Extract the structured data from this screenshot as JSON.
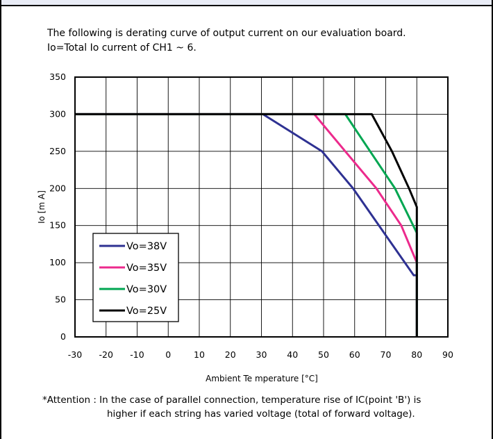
{
  "intro": {
    "line1": "The following is derating curve of output current on our evaluation board.",
    "line2": "Io=Total Io current of CH1 ~ 6."
  },
  "note": {
    "line1": "*Attention : In the case of  parallel connection, temperature rise of IC(point 'B') is",
    "line2": "higher if each string has varied voltage (total of forward voltage)."
  },
  "chart_data": {
    "type": "line",
    "xlabel": "Ambient Te mperature  [°C]",
    "ylabel": "Io [m A]",
    "xlim": [
      -30,
      90
    ],
    "ylim": [
      0,
      350
    ],
    "x_ticks": [
      -30,
      -20,
      -10,
      0,
      10,
      20,
      30,
      40,
      50,
      60,
      70,
      80,
      90
    ],
    "y_ticks": [
      0,
      50,
      100,
      150,
      200,
      250,
      300,
      350
    ],
    "grid": true,
    "legend_position": "bottom-left",
    "series": [
      {
        "name": "Vo=38V",
        "color": "#2e3192",
        "points": [
          [
            -30,
            300
          ],
          [
            30.5,
            300
          ],
          [
            49.5,
            250
          ],
          [
            59.5,
            200
          ],
          [
            79,
            83
          ],
          [
            80,
            83
          ],
          [
            80,
            0
          ]
        ]
      },
      {
        "name": "Vo=35V",
        "color": "#ec2a8c",
        "points": [
          [
            -30,
            300
          ],
          [
            47,
            300
          ],
          [
            57,
            250
          ],
          [
            67,
            200
          ],
          [
            75,
            150
          ],
          [
            80,
            100
          ],
          [
            80,
            0
          ]
        ]
      },
      {
        "name": "Vo=30V",
        "color": "#00a651",
        "points": [
          [
            -30,
            300
          ],
          [
            57,
            300
          ],
          [
            65,
            250
          ],
          [
            73,
            200
          ],
          [
            80,
            140
          ],
          [
            80,
            0
          ]
        ]
      },
      {
        "name": "Vo=25V",
        "color": "#000000",
        "points": [
          [
            -30,
            300
          ],
          [
            65.5,
            300
          ],
          [
            72,
            250
          ],
          [
            77.5,
            200
          ],
          [
            80,
            175
          ],
          [
            80,
            0
          ]
        ]
      }
    ]
  }
}
